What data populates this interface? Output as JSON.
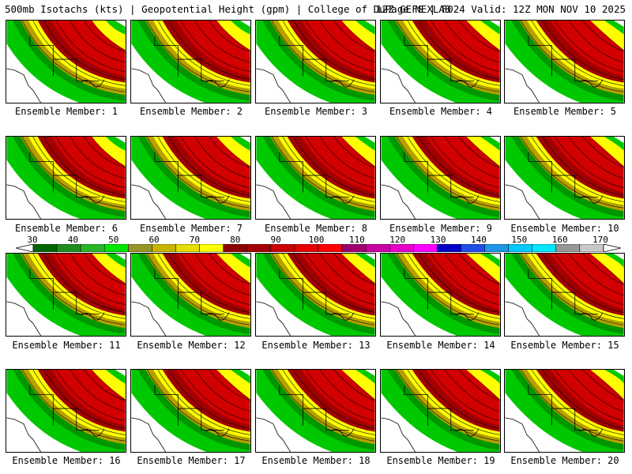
{
  "header": {
    "left": "500mb Isotachs (kts) | Geopotential Height (gpm) | College of DuPage NEXLAB",
    "right": "12Z GEFS | F024 Valid: 12Z MON NOV 10 2025"
  },
  "panels": [
    {
      "label": "Ensemble Member: 1"
    },
    {
      "label": "Ensemble Member: 2"
    },
    {
      "label": "Ensemble Member: 3"
    },
    {
      "label": "Ensemble Member: 4"
    },
    {
      "label": "Ensemble Member: 5"
    },
    {
      "label": "Ensemble Member: 6"
    },
    {
      "label": "Ensemble Member: 7"
    },
    {
      "label": "Ensemble Member: 8"
    },
    {
      "label": "Ensemble Member: 9"
    },
    {
      "label": "Ensemble Member: 10"
    },
    {
      "label": "Ensemble Member: 11"
    },
    {
      "label": "Ensemble Member: 12"
    },
    {
      "label": "Ensemble Member: 13"
    },
    {
      "label": "Ensemble Member: 14"
    },
    {
      "label": "Ensemble Member: 15"
    },
    {
      "label": "Ensemble Member: 16"
    },
    {
      "label": "Ensemble Member: 17"
    },
    {
      "label": "Ensemble Member: 18"
    },
    {
      "label": "Ensemble Member: 19"
    },
    {
      "label": "Ensemble Member: 20"
    }
  ],
  "colorbar": {
    "ticks": [
      "30",
      "40",
      "50",
      "60",
      "70",
      "80",
      "90",
      "100",
      "110",
      "120",
      "130",
      "140",
      "150",
      "160",
      "170"
    ],
    "colors": [
      "#006400",
      "#1e8c1e",
      "#28b428",
      "#00e600",
      "#969628",
      "#c8b400",
      "#e6dc00",
      "#ffff00",
      "#8b0000",
      "#a00000",
      "#c80000",
      "#e60000",
      "#ff0000",
      "#a0006e",
      "#c800a0",
      "#e600c8",
      "#ff00ff",
      "#0000c8",
      "#1e50e6",
      "#1e96e6",
      "#00c8ff",
      "#00e6ff",
      "#969696",
      "#c8c8c8"
    ]
  },
  "bands": {
    "outer_green": "#00c800",
    "mid_green": "#009600",
    "olive": "#b4a000",
    "yellow": "#ffff00",
    "darkred": "#a00000",
    "red": "#d20000",
    "purple": "#8c00a0"
  }
}
